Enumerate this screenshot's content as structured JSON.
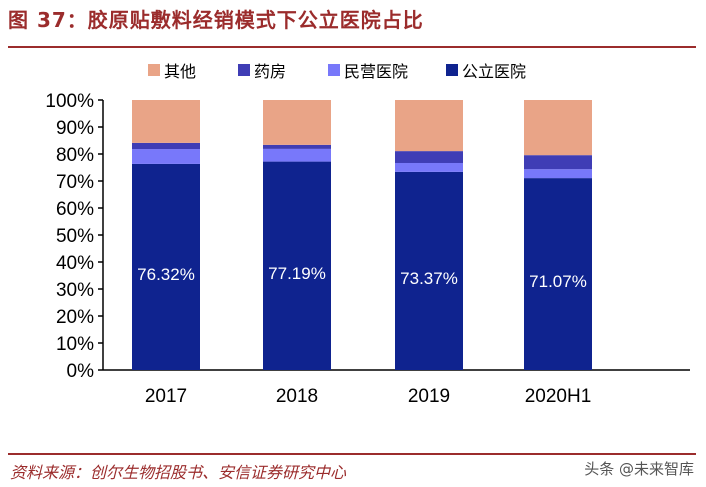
{
  "title": "图 37：胶原贴敷料经销模式下公立医院占比",
  "source": "资料来源：创尔生物招股书、安信证券研究中心",
  "watermark": "头条 @未来智库",
  "chart_data": {
    "type": "bar",
    "stacked": true,
    "categories": [
      "2017",
      "2018",
      "2019",
      "2020H1"
    ],
    "series": [
      {
        "name": "公立医院",
        "values": [
          76.32,
          77.19,
          73.37,
          71.07
        ],
        "color": "#0f238f",
        "labels": [
          "76.32%",
          "77.19%",
          "73.37%",
          "71.07%"
        ]
      },
      {
        "name": "民营医院",
        "values": [
          5.5,
          4.7,
          3.3,
          3.3
        ],
        "color": "#7878fa"
      },
      {
        "name": "药房",
        "values": [
          2.3,
          1.5,
          4.4,
          5.2
        ],
        "color": "#3f3db5"
      },
      {
        "name": "其他",
        "values": [
          15.88,
          16.61,
          18.93,
          20.43
        ],
        "color": "#e9a487"
      }
    ],
    "legend_order": [
      "其他",
      "药房",
      "民营医院",
      "公立医院"
    ],
    "ylim": [
      0,
      100
    ],
    "yticks": [
      "0%",
      "10%",
      "20%",
      "30%",
      "40%",
      "50%",
      "60%",
      "70%",
      "80%",
      "90%",
      "100%"
    ],
    "legend": "top",
    "grid": false
  }
}
